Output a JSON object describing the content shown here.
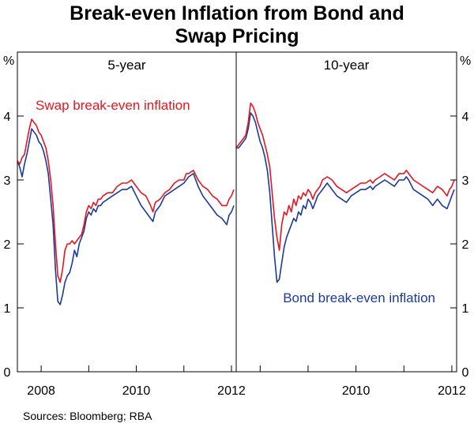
{
  "chart_data": {
    "type": "line",
    "title_lines": [
      "Break-even Inflation from Bond and",
      "Swap Pricing"
    ],
    "ylabel": "%",
    "ylim": [
      0,
      5
    ],
    "yticks": [
      "0",
      "1",
      "2",
      "3",
      "4"
    ],
    "grid": false,
    "source": "Sources: Bloomberg; RBA",
    "colors": {
      "swap": "#e8141e",
      "bond": "#1a3a9c"
    },
    "panels": [
      {
        "title": "5-year",
        "xlim": [
          2007.5,
          2012.1
        ],
        "xticks": [
          2008,
          2009,
          2010,
          2011,
          2012
        ],
        "xtick_labels": [
          "2008",
          "",
          "2010",
          "",
          "2012"
        ],
        "series_labels": [
          {
            "name": "swap",
            "text": "Swap break-even inflation"
          }
        ],
        "series": [
          {
            "name": "swap",
            "x": [
              2007.5,
              2007.55,
              2007.6,
              2007.65,
              2007.7,
              2007.75,
              2007.8,
              2007.85,
              2007.9,
              2007.95,
              2008.0,
              2008.05,
              2008.1,
              2008.15,
              2008.2,
              2008.25,
              2008.3,
              2008.35,
              2008.4,
              2008.45,
              2008.5,
              2008.55,
              2008.6,
              2008.65,
              2008.7,
              2008.75,
              2008.8,
              2008.85,
              2008.9,
              2008.95,
              2009.0,
              2009.05,
              2009.1,
              2009.15,
              2009.2,
              2009.25,
              2009.3,
              2009.4,
              2009.5,
              2009.6,
              2009.7,
              2009.8,
              2009.9,
              2010.0,
              2010.1,
              2010.2,
              2010.3,
              2010.35,
              2010.4,
              2010.5,
              2010.6,
              2010.7,
              2010.8,
              2010.9,
              2011.0,
              2011.05,
              2011.1,
              2011.2,
              2011.3,
              2011.4,
              2011.5,
              2011.6,
              2011.7,
              2011.8,
              2011.9,
              2011.95,
              2012.0,
              2012.05
            ],
            "y": [
              3.3,
              3.25,
              3.35,
              3.4,
              3.6,
              3.8,
              3.95,
              3.9,
              3.85,
              3.75,
              3.7,
              3.6,
              3.5,
              3.3,
              3.0,
              2.6,
              2.0,
              1.5,
              1.4,
              1.6,
              1.9,
              2.0,
              2.0,
              2.05,
              2.0,
              2.05,
              2.1,
              2.15,
              2.3,
              2.5,
              2.6,
              2.55,
              2.65,
              2.6,
              2.7,
              2.7,
              2.75,
              2.8,
              2.8,
              2.9,
              2.95,
              2.95,
              3.0,
              2.9,
              2.8,
              2.75,
              2.6,
              2.5,
              2.65,
              2.7,
              2.8,
              2.85,
              2.95,
              3.0,
              3.0,
              3.1,
              3.1,
              3.15,
              3.0,
              2.9,
              2.85,
              2.75,
              2.7,
              2.6,
              2.6,
              2.7,
              2.75,
              2.85
            ]
          },
          {
            "name": "bond",
            "x": [
              2007.5,
              2007.55,
              2007.6,
              2007.65,
              2007.7,
              2007.75,
              2007.8,
              2007.85,
              2007.9,
              2007.95,
              2008.0,
              2008.05,
              2008.1,
              2008.15,
              2008.2,
              2008.25,
              2008.3,
              2008.35,
              2008.4,
              2008.45,
              2008.5,
              2008.55,
              2008.6,
              2008.65,
              2008.7,
              2008.75,
              2008.8,
              2008.85,
              2008.9,
              2008.95,
              2009.0,
              2009.05,
              2009.1,
              2009.15,
              2009.2,
              2009.25,
              2009.3,
              2009.4,
              2009.5,
              2009.6,
              2009.7,
              2009.8,
              2009.9,
              2010.0,
              2010.1,
              2010.2,
              2010.3,
              2010.35,
              2010.4,
              2010.5,
              2010.6,
              2010.7,
              2010.8,
              2010.9,
              2011.0,
              2011.05,
              2011.1,
              2011.2,
              2011.3,
              2011.4,
              2011.5,
              2011.6,
              2011.7,
              2011.8,
              2011.9,
              2011.95,
              2012.0,
              2012.05
            ],
            "y": [
              3.3,
              3.2,
              3.05,
              3.25,
              3.4,
              3.6,
              3.8,
              3.75,
              3.7,
              3.6,
              3.55,
              3.45,
              3.3,
              3.1,
              2.7,
              2.3,
              1.6,
              1.1,
              1.05,
              1.2,
              1.4,
              1.5,
              1.55,
              1.7,
              1.9,
              1.8,
              2.0,
              2.1,
              2.2,
              2.4,
              2.5,
              2.45,
              2.55,
              2.5,
              2.6,
              2.6,
              2.65,
              2.7,
              2.75,
              2.8,
              2.85,
              2.85,
              2.9,
              2.75,
              2.6,
              2.5,
              2.4,
              2.35,
              2.5,
              2.6,
              2.75,
              2.8,
              2.85,
              2.9,
              2.95,
              3.0,
              3.05,
              3.1,
              2.9,
              2.75,
              2.65,
              2.55,
              2.45,
              2.4,
              2.3,
              2.45,
              2.5,
              2.6
            ]
          }
        ]
      },
      {
        "title": "10-year",
        "xlim": [
          2007.5,
          2012.1
        ],
        "xticks": [
          2008,
          2009,
          2010,
          2011,
          2012
        ],
        "xtick_labels": [
          "",
          "",
          "2010",
          "",
          "2012"
        ],
        "series_labels": [
          {
            "name": "bond",
            "text": "Bond break-even inflation"
          }
        ],
        "series": [
          {
            "name": "swap",
            "x": [
              2007.5,
              2007.55,
              2007.6,
              2007.65,
              2007.7,
              2007.75,
              2007.8,
              2007.85,
              2007.9,
              2007.95,
              2008.0,
              2008.05,
              2008.1,
              2008.15,
              2008.2,
              2008.25,
              2008.3,
              2008.35,
              2008.4,
              2008.45,
              2008.5,
              2008.55,
              2008.6,
              2008.65,
              2008.7,
              2008.75,
              2008.8,
              2008.85,
              2008.9,
              2008.95,
              2009.0,
              2009.05,
              2009.1,
              2009.15,
              2009.2,
              2009.25,
              2009.3,
              2009.4,
              2009.5,
              2009.6,
              2009.7,
              2009.8,
              2009.9,
              2010.0,
              2010.1,
              2010.2,
              2010.3,
              2010.35,
              2010.4,
              2010.5,
              2010.6,
              2010.7,
              2010.8,
              2010.9,
              2011.0,
              2011.05,
              2011.1,
              2011.2,
              2011.3,
              2011.4,
              2011.5,
              2011.6,
              2011.7,
              2011.8,
              2011.9,
              2011.95,
              2012.0,
              2012.05
            ],
            "y": [
              3.5,
              3.55,
              3.6,
              3.65,
              3.7,
              3.9,
              4.2,
              4.15,
              4.05,
              3.9,
              3.8,
              3.7,
              3.55,
              3.4,
              3.2,
              2.8,
              2.4,
              2.1,
              1.9,
              2.3,
              2.5,
              2.45,
              2.6,
              2.5,
              2.7,
              2.6,
              2.75,
              2.7,
              2.8,
              2.75,
              2.85,
              2.8,
              2.7,
              2.8,
              2.85,
              2.9,
              3.0,
              3.05,
              3.0,
              2.9,
              2.85,
              2.8,
              2.85,
              2.9,
              2.95,
              2.95,
              3.0,
              2.95,
              3.0,
              3.05,
              3.1,
              3.05,
              3.0,
              3.1,
              3.1,
              3.15,
              3.1,
              3.0,
              2.95,
              2.9,
              2.85,
              2.8,
              2.9,
              2.85,
              2.75,
              2.85,
              2.9,
              3.0
            ]
          },
          {
            "name": "bond",
            "x": [
              2007.5,
              2007.55,
              2007.6,
              2007.65,
              2007.7,
              2007.75,
              2007.8,
              2007.85,
              2007.9,
              2007.95,
              2008.0,
              2008.05,
              2008.1,
              2008.15,
              2008.2,
              2008.25,
              2008.3,
              2008.35,
              2008.4,
              2008.45,
              2008.5,
              2008.55,
              2008.6,
              2008.65,
              2008.7,
              2008.75,
              2008.8,
              2008.85,
              2008.9,
              2008.95,
              2009.0,
              2009.05,
              2009.1,
              2009.15,
              2009.2,
              2009.25,
              2009.3,
              2009.4,
              2009.5,
              2009.6,
              2009.7,
              2009.8,
              2009.9,
              2010.0,
              2010.1,
              2010.2,
              2010.3,
              2010.35,
              2010.4,
              2010.5,
              2010.6,
              2010.7,
              2010.8,
              2010.9,
              2011.0,
              2011.05,
              2011.1,
              2011.2,
              2011.3,
              2011.4,
              2011.5,
              2011.6,
              2011.7,
              2011.8,
              2011.9,
              2011.95,
              2012.0,
              2012.05
            ],
            "y": [
              3.5,
              3.5,
              3.55,
              3.6,
              3.65,
              3.8,
              4.05,
              4.0,
              3.9,
              3.75,
              3.6,
              3.5,
              3.35,
              3.15,
              2.8,
              2.3,
              1.8,
              1.4,
              1.45,
              1.7,
              1.95,
              2.1,
              2.2,
              2.3,
              2.4,
              2.35,
              2.5,
              2.45,
              2.6,
              2.55,
              2.7,
              2.65,
              2.55,
              2.65,
              2.75,
              2.8,
              2.85,
              2.95,
              2.85,
              2.75,
              2.7,
              2.65,
              2.75,
              2.8,
              2.85,
              2.85,
              2.9,
              2.85,
              2.9,
              2.95,
              3.0,
              2.95,
              2.9,
              3.0,
              3.0,
              3.05,
              3.0,
              2.85,
              2.8,
              2.75,
              2.7,
              2.6,
              2.7,
              2.6,
              2.55,
              2.65,
              2.75,
              2.85
            ]
          }
        ]
      }
    ]
  }
}
